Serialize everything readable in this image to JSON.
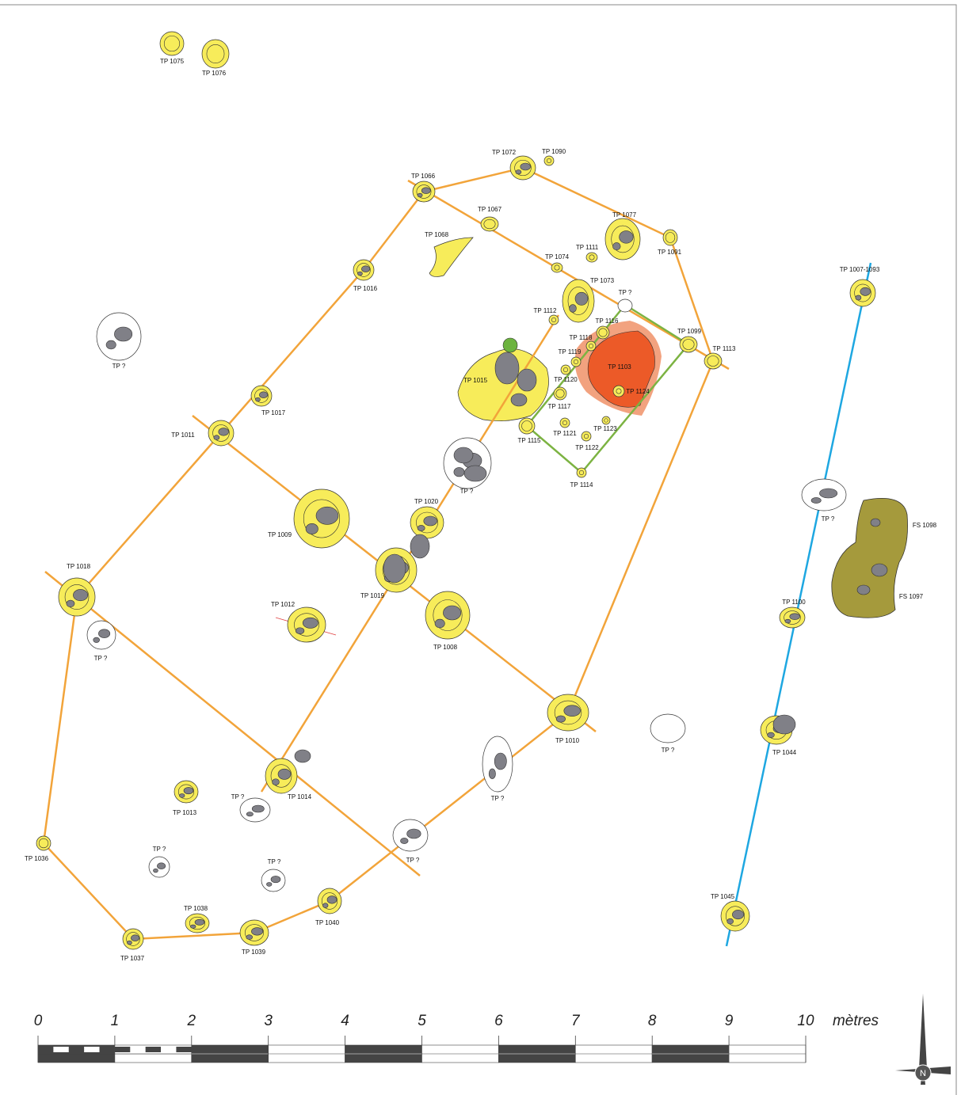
{
  "features": [
    {
      "label": "TP 1075"
    },
    {
      "label": "TP 1076"
    },
    {
      "label": "TP 1072"
    },
    {
      "label": "TP 1090"
    },
    {
      "label": "TP 1066"
    },
    {
      "label": "TP 1067"
    },
    {
      "label": "TP 1068"
    },
    {
      "label": "TP 1077"
    },
    {
      "label": "TP 1111"
    },
    {
      "label": "TP 1091"
    },
    {
      "label": "TP 1074"
    },
    {
      "label": "TP 1016"
    },
    {
      "label": "TP 1073"
    },
    {
      "label": "TP ?"
    },
    {
      "label": "TP 1007-1093"
    },
    {
      "label": "TP 1112"
    },
    {
      "label": "TP 1116"
    },
    {
      "label": "TP 1099"
    },
    {
      "label": "TP 1113"
    },
    {
      "label": "TP 1118"
    },
    {
      "label": "TP 1119"
    },
    {
      "label": "TP 1103"
    },
    {
      "label": "TP ?"
    },
    {
      "label": "TP 1015"
    },
    {
      "label": "TP 1120"
    },
    {
      "label": "TP 1124"
    },
    {
      "label": "TP 1117"
    },
    {
      "label": "TP 1017"
    },
    {
      "label": "TP 1011"
    },
    {
      "label": "TP 1115"
    },
    {
      "label": "TP 1121"
    },
    {
      "label": "TP 1123"
    },
    {
      "label": "TP 1122"
    },
    {
      "label": "TP ?"
    },
    {
      "label": "TP 1114"
    },
    {
      "label": "TP ?"
    },
    {
      "label": "TP 1020"
    },
    {
      "label": "TP 1009"
    },
    {
      "label": "FS 1098"
    },
    {
      "label": "FS 1097"
    },
    {
      "label": "TP 1018"
    },
    {
      "label": "TP 1019"
    },
    {
      "label": "TP 1012"
    },
    {
      "label": "TP 1100"
    },
    {
      "label": "TP 1008"
    },
    {
      "label": "TP ?"
    },
    {
      "label": "TP 1010"
    },
    {
      "label": "TP ?"
    },
    {
      "label": "TP 1044"
    },
    {
      "label": "TP ?"
    },
    {
      "label": "TP 1014"
    },
    {
      "label": "TP 1013"
    },
    {
      "label": "TP ?"
    },
    {
      "label": "TP 1036"
    },
    {
      "label": "TP ?"
    },
    {
      "label": "TP ?"
    },
    {
      "label": "TP ?"
    },
    {
      "label": "TP 1038"
    },
    {
      "label": "TP 1040"
    },
    {
      "label": "TP 1045"
    },
    {
      "label": "TP 1037"
    },
    {
      "label": "TP 1039"
    }
  ],
  "scale": {
    "ticks": [
      0,
      1,
      2,
      3,
      4,
      5,
      6,
      7,
      8,
      9,
      10
    ],
    "unit": "mètres"
  },
  "north": "N"
}
